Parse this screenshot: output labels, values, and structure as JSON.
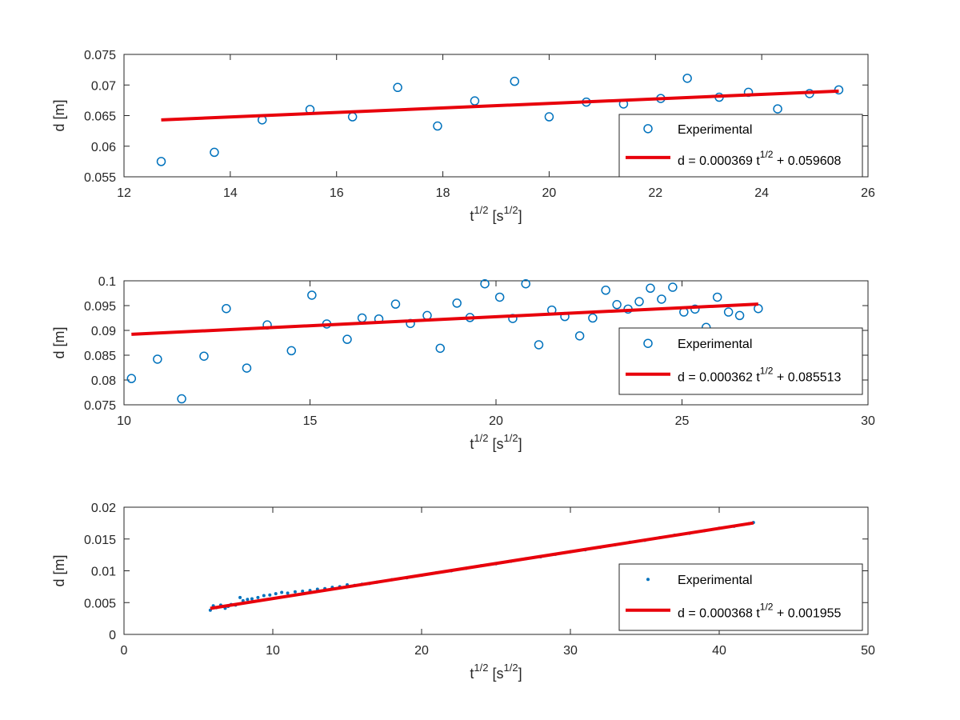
{
  "colors": {
    "marker": "#0072BD",
    "fit": "#E8000B",
    "axis": "#262626"
  },
  "chart_data": [
    {
      "type": "scatter",
      "marker": "circle",
      "xlim": [
        12,
        26
      ],
      "ylim": [
        0.055,
        0.075
      ],
      "xticks": [
        12,
        14,
        16,
        18,
        20,
        22,
        24,
        26
      ],
      "yticks": [
        0.055,
        0.06,
        0.065,
        0.07,
        0.075
      ],
      "xtick_labels": [
        "12",
        "14",
        "16",
        "18",
        "20",
        "22",
        "24",
        "26"
      ],
      "ytick_labels": [
        "0.055",
        "0.06",
        "0.065",
        "0.07",
        "0.075"
      ],
      "ylabel": "d [m]",
      "xlabel": {
        "base": "t",
        "exp": "1/2",
        "unit_open": " [s",
        "unit_exp": "1/2",
        "unit_close": "]"
      },
      "legend": {
        "position": "bottom-right",
        "experimental": "Experimental",
        "fit": {
          "prefix": "d = 0.000369  t",
          "exp": "1/2",
          "suffix": " + 0.059608"
        }
      },
      "series": [
        {
          "name": "Experimental",
          "x": [
            12.7,
            13.7,
            14.6,
            15.5,
            16.3,
            17.15,
            17.9,
            18.6,
            19.35,
            20.0,
            20.7,
            21.4,
            22.1,
            22.6,
            23.2,
            23.75,
            24.3,
            24.9,
            25.45
          ],
          "y": [
            0.0575,
            0.059,
            0.0643,
            0.066,
            0.0648,
            0.0696,
            0.0633,
            0.0674,
            0.0706,
            0.0648,
            0.0672,
            0.0669,
            0.0678,
            0.0711,
            0.068,
            0.0688,
            0.0661,
            0.0686,
            0.0692
          ]
        }
      ],
      "fit": {
        "slope": 0.000369,
        "intercept": 0.059608,
        "x_range": [
          12.7,
          25.45
        ]
      }
    },
    {
      "type": "scatter",
      "marker": "circle",
      "xlim": [
        10,
        30
      ],
      "ylim": [
        0.075,
        0.1
      ],
      "xticks": [
        10,
        15,
        20,
        25,
        30
      ],
      "yticks": [
        0.075,
        0.08,
        0.085,
        0.09,
        0.095,
        0.1
      ],
      "xtick_labels": [
        "10",
        "15",
        "20",
        "25",
        "30"
      ],
      "ytick_labels": [
        "0.075",
        "0.08",
        "0.085",
        "0.09",
        "0.095",
        "0.1"
      ],
      "ylabel": "d [m]",
      "xlabel": {
        "base": "t",
        "exp": "1/2",
        "unit_open": " [s",
        "unit_exp": "1/2",
        "unit_close": "]"
      },
      "legend": {
        "position": "bottom-right",
        "experimental": "Experimental",
        "fit": {
          "prefix": "d = 0.000362  t",
          "exp": "1/2",
          "suffix": " + 0.085513"
        }
      },
      "series": [
        {
          "name": "Experimental",
          "x": [
            10.2,
            10.9,
            11.55,
            12.15,
            12.75,
            13.3,
            13.85,
            14.5,
            15.05,
            15.45,
            16.0,
            16.4,
            16.85,
            17.3,
            17.7,
            18.15,
            18.5,
            18.95,
            19.3,
            19.7,
            20.1,
            20.45,
            20.8,
            21.15,
            21.5,
            21.85,
            22.25,
            22.6,
            22.95,
            23.25,
            23.55,
            23.85,
            24.15,
            24.45,
            24.75,
            25.05,
            25.35,
            25.65,
            25.95,
            26.25,
            26.55,
            27.05
          ],
          "y": [
            0.0803,
            0.0842,
            0.0762,
            0.0848,
            0.0944,
            0.0824,
            0.0911,
            0.0859,
            0.0971,
            0.0913,
            0.0882,
            0.0925,
            0.0923,
            0.0953,
            0.0914,
            0.093,
            0.0864,
            0.0955,
            0.0926,
            0.0994,
            0.0967,
            0.0924,
            0.0994,
            0.0871,
            0.0941,
            0.0928,
            0.0889,
            0.0925,
            0.0981,
            0.0952,
            0.0943,
            0.0958,
            0.0985,
            0.0963,
            0.0987,
            0.0937,
            0.0943,
            0.0906,
            0.0967,
            0.0937,
            0.093,
            0.0944
          ]
        }
      ],
      "fit": {
        "slope": 0.000362,
        "intercept": 0.085513,
        "x_range": [
          10.2,
          27.05
        ]
      }
    },
    {
      "type": "scatter",
      "marker": "dot",
      "xlim": [
        0,
        50
      ],
      "ylim": [
        0,
        0.02
      ],
      "xticks": [
        0,
        10,
        20,
        30,
        40,
        50
      ],
      "yticks": [
        0,
        0.005,
        0.01,
        0.015,
        0.02
      ],
      "xtick_labels": [
        "0",
        "10",
        "20",
        "30",
        "40",
        "50"
      ],
      "ytick_labels": [
        "0",
        "0.005",
        "0.01",
        "0.015",
        "0.02"
      ],
      "ylabel": "d [m]",
      "xlabel": {
        "base": "t",
        "exp": "1/2",
        "unit_open": " [s",
        "unit_exp": "1/2",
        "unit_close": "]"
      },
      "legend": {
        "position": "bottom-right",
        "experimental": "Experimental",
        "fit": {
          "prefix": "d = 0.000368  t",
          "exp": "1/2",
          "suffix": " + 0.001955"
        }
      },
      "series": [
        {
          "name": "Experimental",
          "x": [
            5.8,
            6.0,
            6.2,
            6.5,
            6.8,
            7.0,
            7.2,
            7.5,
            7.8,
            8.0,
            8.3,
            8.6,
            9.0,
            9.4,
            9.8,
            10.2,
            10.6,
            11.0,
            11.5,
            12.0,
            12.5,
            13.0,
            13.5,
            14.0,
            14.5,
            15.0,
            15.5,
            16.0,
            16.5,
            17.0,
            18.0,
            19.0,
            20.0,
            21.0,
            22.0,
            23.0,
            24.0,
            25.0,
            26.0,
            27.0,
            28.0,
            29.0,
            30.0,
            31.0,
            32.0,
            33.0,
            34.0,
            35.0,
            36.0,
            37.0,
            38.0,
            39.0,
            40.0,
            41.0,
            42.0,
            42.3
          ],
          "y": [
            0.0038,
            0.0045,
            0.0042,
            0.0046,
            0.0041,
            0.0044,
            0.0047,
            0.0046,
            0.0058,
            0.0053,
            0.0055,
            0.0056,
            0.0058,
            0.0061,
            0.0062,
            0.0064,
            0.0066,
            0.0065,
            0.0067,
            0.0068,
            0.0069,
            0.0071,
            0.0072,
            0.0074,
            0.0075,
            0.0078,
            0.0077,
            0.0079,
            0.008,
            0.0082,
            0.0086,
            0.0089,
            0.0093,
            0.0097,
            0.01,
            0.0104,
            0.0108,
            0.0111,
            0.0115,
            0.0119,
            0.0122,
            0.0126,
            0.013,
            0.0133,
            0.0137,
            0.0141,
            0.0145,
            0.0148,
            0.0152,
            0.0156,
            0.0159,
            0.0163,
            0.0167,
            0.017,
            0.0174,
            0.0176
          ]
        }
      ],
      "fit": {
        "slope": 0.000368,
        "intercept": 0.001955,
        "x_range": [
          5.8,
          42.3
        ]
      }
    }
  ]
}
